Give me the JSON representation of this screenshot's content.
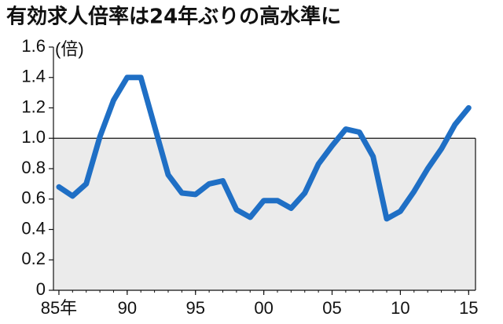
{
  "chart_data": {
    "type": "line",
    "title": "有効求人倍率は24年ぶりの高水準に",
    "y_unit": "(倍)",
    "x": [
      1985,
      1986,
      1987,
      1988,
      1989,
      1990,
      1991,
      1992,
      1993,
      1994,
      1995,
      1996,
      1997,
      1998,
      1999,
      2000,
      2001,
      2002,
      2003,
      2004,
      2005,
      2006,
      2007,
      2008,
      2009,
      2010,
      2011,
      2012,
      2013,
      2014,
      2015
    ],
    "values": [
      0.68,
      0.62,
      0.7,
      1.01,
      1.25,
      1.4,
      1.4,
      1.08,
      0.76,
      0.64,
      0.63,
      0.7,
      0.72,
      0.53,
      0.48,
      0.59,
      0.59,
      0.54,
      0.64,
      0.83,
      0.95,
      1.06,
      1.04,
      0.88,
      0.47,
      0.52,
      0.65,
      0.8,
      0.93,
      1.09,
      1.2
    ],
    "color": "#1f6fc5",
    "xlim": [
      1984.6,
      2015.5
    ],
    "xticks": [
      {
        "value": 1985,
        "label": "85年"
      },
      {
        "value": 1990,
        "label": "90"
      },
      {
        "value": 1995,
        "label": "95"
      },
      {
        "value": 2000,
        "label": "00"
      },
      {
        "value": 2005,
        "label": "05"
      },
      {
        "value": 2010,
        "label": "10"
      },
      {
        "value": 2015,
        "label": "15"
      }
    ],
    "ylim": [
      0,
      1.6
    ],
    "yticks": [
      0,
      0.2,
      0.4,
      0.6,
      0.8,
      {
        "value": 1,
        "label": "1.0"
      },
      1.2,
      1.4,
      1.6
    ],
    "shade_below": 1
  }
}
